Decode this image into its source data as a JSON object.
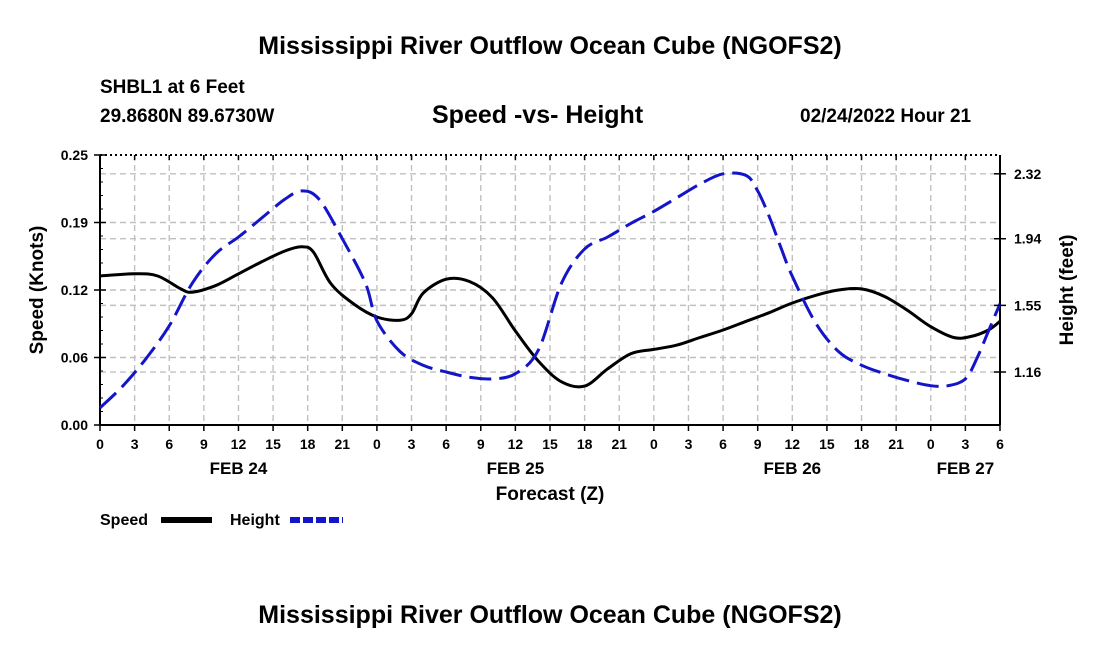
{
  "header": {
    "title": "Mississippi River Outflow Ocean Cube (NGOFS2)",
    "station": "SHBL1 at 6 Feet",
    "coords": "29.8680N  89.6730W",
    "subtitle": "Speed -vs- Height",
    "datetime": "02/24/2022 Hour 21"
  },
  "footer": {
    "title": "Mississippi River Outflow Ocean Cube (NGOFS2)"
  },
  "chart_data": {
    "type": "line",
    "title": "Speed -vs- Height",
    "xlabel": "Forecast (Z)",
    "ylabel": "Speed (Knots)",
    "y2label": "Height (feet)",
    "xlim": [
      0,
      78
    ],
    "ylim": [
      0.0,
      0.25
    ],
    "y2lim": [
      0.85,
      2.43
    ],
    "yticks": [
      "0.00",
      "0.06",
      "0.12",
      "0.19",
      "0.25"
    ],
    "ytick_values": [
      0.0,
      0.0625,
      0.125,
      0.1875,
      0.25
    ],
    "y2ticks": [
      "1.16",
      "1.55",
      "1.94",
      "2.32"
    ],
    "y2tick_values": [
      1.16,
      1.55,
      1.94,
      2.32
    ],
    "xtick_labels": [
      "0",
      "3",
      "6",
      "9",
      "12",
      "15",
      "18",
      "21",
      "0",
      "3",
      "6",
      "9",
      "12",
      "15",
      "18",
      "21",
      "0",
      "3",
      "6",
      "9",
      "12",
      "15",
      "18",
      "21",
      "0",
      "3",
      "6"
    ],
    "date_labels": [
      {
        "label": "FEB 24",
        "x": 12
      },
      {
        "label": "FEB 25",
        "x": 36
      },
      {
        "label": "FEB 26",
        "x": 60
      },
      {
        "label": "FEB 27",
        "x": 75
      }
    ],
    "series": [
      {
        "name": "Speed",
        "color": "#000000",
        "axis": "left",
        "x": [
          0,
          3,
          5,
          7,
          8,
          10,
          12,
          14,
          16,
          17.5,
          18.5,
          20,
          22,
          24,
          26,
          27,
          28,
          30,
          32,
          34,
          36,
          38,
          40,
          42,
          44,
          46,
          48,
          50,
          52,
          54,
          56,
          58,
          60,
          62,
          64,
          66,
          68,
          70,
          72,
          74,
          75.5,
          77,
          78
        ],
        "values": [
          0.138,
          0.14,
          0.138,
          0.126,
          0.123,
          0.129,
          0.14,
          0.151,
          0.161,
          0.165,
          0.16,
          0.131,
          0.112,
          0.1,
          0.097,
          0.103,
          0.122,
          0.135,
          0.133,
          0.118,
          0.087,
          0.059,
          0.04,
          0.036,
          0.052,
          0.066,
          0.07,
          0.074,
          0.081,
          0.088,
          0.096,
          0.104,
          0.113,
          0.12,
          0.125,
          0.126,
          0.119,
          0.106,
          0.091,
          0.081,
          0.082,
          0.088,
          0.096
        ]
      },
      {
        "name": "Height",
        "color": "#1414c8",
        "axis": "right",
        "x": [
          0,
          2,
          4,
          6,
          8,
          10,
          12,
          14,
          16,
          17.5,
          19,
          21,
          23,
          24,
          26,
          28,
          30,
          32,
          34,
          36,
          38,
          40,
          42,
          44,
          46,
          48,
          50,
          52,
          54,
          56,
          57,
          58,
          59,
          60,
          62,
          64,
          66,
          68,
          70,
          72,
          73.5,
          75,
          76,
          77,
          78
        ],
        "values": [
          0.95,
          1.08,
          1.24,
          1.43,
          1.68,
          1.85,
          1.95,
          2.06,
          2.17,
          2.22,
          2.17,
          1.94,
          1.68,
          1.46,
          1.28,
          1.2,
          1.16,
          1.13,
          1.12,
          1.15,
          1.29,
          1.68,
          1.88,
          1.95,
          2.03,
          2.1,
          2.18,
          2.26,
          2.32,
          2.31,
          2.22,
          2.07,
          1.89,
          1.72,
          1.45,
          1.28,
          1.2,
          1.15,
          1.11,
          1.08,
          1.08,
          1.12,
          1.24,
          1.4,
          1.56
        ]
      }
    ],
    "legend": [
      {
        "name": "Speed",
        "color": "#000000",
        "style": "solid"
      },
      {
        "name": "Height",
        "color": "#1414c8",
        "style": "dashed"
      }
    ],
    "grid": true,
    "legend_position": "bottom-left"
  }
}
